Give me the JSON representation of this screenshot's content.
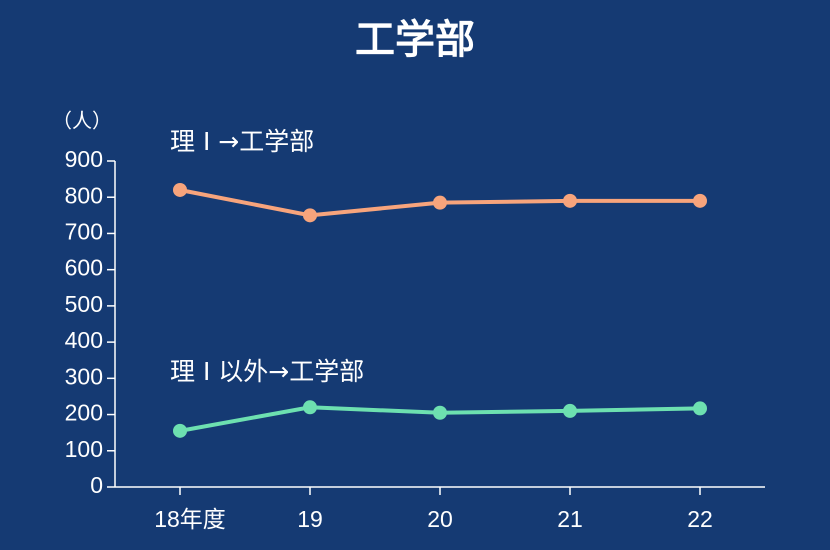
{
  "chart_data": {
    "type": "line",
    "title": "工学部",
    "y_label": "（人）",
    "categories": [
      "18年度",
      "19",
      "20",
      "21",
      "22"
    ],
    "series": [
      {
        "name": "理 I →工学部",
        "color": "#f7a47c",
        "values": [
          820,
          750,
          785,
          790,
          790
        ]
      },
      {
        "name": "理 I 以外→工学部",
        "color": "#6de0b0",
        "values": [
          155,
          220,
          205,
          210,
          217
        ]
      }
    ],
    "ylim": [
      0,
      900
    ],
    "yticks": [
      0,
      100,
      200,
      300,
      400,
      500,
      600,
      700,
      800,
      900
    ]
  }
}
